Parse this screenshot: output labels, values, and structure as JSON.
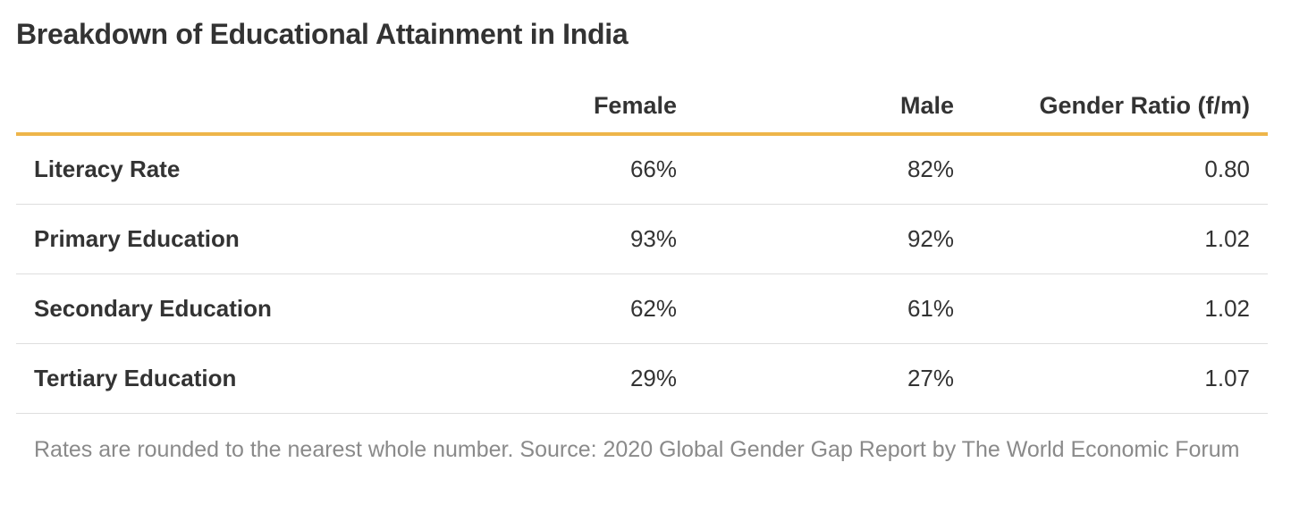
{
  "chart_data": {
    "type": "table",
    "title": "Breakdown of Educational Attainment in India",
    "columns": [
      "",
      "Female",
      "Male",
      "Gender Ratio (f/m)"
    ],
    "rows": [
      {
        "label": "Literacy Rate",
        "female": "66%",
        "male": "82%",
        "ratio": "0.80"
      },
      {
        "label": "Primary Education",
        "female": "93%",
        "male": "92%",
        "ratio": "1.02"
      },
      {
        "label": "Secondary Education",
        "female": "62%",
        "male": "61%",
        "ratio": "1.02"
      },
      {
        "label": "Tertiary Education",
        "female": "29%",
        "male": "27%",
        "ratio": "1.07"
      }
    ],
    "note": "Rates are rounded to the nearest whole number. Source: 2020 Global Gender Gap Report by The World Economic Forum"
  },
  "colors": {
    "header_rule": "#eeb54a",
    "row_rule": "#dedede",
    "text": "#333333",
    "note_text": "#8a8a8a"
  }
}
